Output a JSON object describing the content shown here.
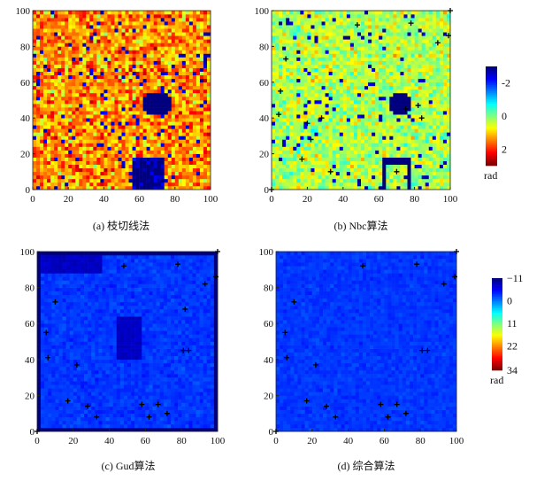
{
  "chart_data": [
    {
      "type": "heatmap",
      "caption": "(a) 枝切线法",
      "xlim": [
        0,
        100
      ],
      "ylim": [
        0,
        100
      ],
      "xticks": [
        "0",
        "20",
        "40",
        "60",
        "80",
        "100"
      ],
      "yticks": [
        "0",
        "20",
        "40",
        "60",
        "80",
        "100"
      ],
      "colorbar": "top",
      "base_value": 1.4,
      "noise": 0.9,
      "outlier_value": -2.6,
      "outlier_fraction": 0.06,
      "regions": [
        {
          "shape": "circle",
          "cx": 70,
          "cy": 48,
          "r": 8,
          "value": -3
        },
        {
          "shape": "rect",
          "x": [
            56,
            73
          ],
          "y": [
            0,
            17
          ],
          "value": -3
        }
      ],
      "markers": []
    },
    {
      "type": "heatmap",
      "caption": "(b) Nbc算法",
      "xlim": [
        0,
        100
      ],
      "ylim": [
        0,
        100
      ],
      "xticks": [
        "0",
        "20",
        "40",
        "60",
        "80",
        "100"
      ],
      "yticks": [
        "0",
        "20",
        "40",
        "60",
        "80",
        "100"
      ],
      "colorbar": "top",
      "base_value": 0.3,
      "noise": 0.7,
      "outlier_value": -2.6,
      "outlier_fraction": 0.04,
      "regions": [
        {
          "shape": "circle",
          "cx": 72,
          "cy": 48,
          "r": 7,
          "value": -3
        },
        {
          "shape": "outline",
          "x": [
            62,
            78
          ],
          "y": [
            0,
            17
          ],
          "value": -3
        }
      ],
      "markers": [
        [
          0,
          0
        ],
        [
          100,
          100
        ],
        [
          8,
          73
        ],
        [
          5,
          55
        ],
        [
          4,
          42
        ],
        [
          20,
          37
        ],
        [
          28,
          40
        ],
        [
          22,
          28
        ],
        [
          17,
          17
        ],
        [
          33,
          10
        ],
        [
          48,
          92
        ],
        [
          78,
          93
        ],
        [
          75,
          45
        ],
        [
          82,
          47
        ],
        [
          84,
          40
        ],
        [
          93,
          82
        ],
        [
          99,
          86
        ],
        [
          70,
          10
        ]
      ]
    },
    {
      "type": "heatmap",
      "caption": "(c) Gud算法",
      "xlim": [
        0,
        100
      ],
      "ylim": [
        0,
        100
      ],
      "xticks": [
        "0",
        "20",
        "40",
        "60",
        "80",
        "100"
      ],
      "yticks": [
        "0",
        "20",
        "40",
        "60",
        "80",
        "100"
      ],
      "colorbar": "bottom",
      "base_value": -3,
      "noise": 1.2,
      "outlier_value": -7,
      "outlier_fraction": 0.0,
      "regions": [
        {
          "shape": "rect",
          "x": [
            0,
            35
          ],
          "y": [
            88,
            100
          ],
          "value": -8
        },
        {
          "shape": "frame",
          "value": -11
        },
        {
          "shape": "rect",
          "x": [
            44,
            57
          ],
          "y": [
            40,
            63
          ],
          "value": -8
        }
      ],
      "markers": [
        [
          0,
          0
        ],
        [
          100,
          100
        ],
        [
          48,
          92
        ],
        [
          78,
          93
        ],
        [
          93,
          82
        ],
        [
          99,
          86
        ],
        [
          10,
          72
        ],
        [
          5,
          55
        ],
        [
          6,
          41
        ],
        [
          22,
          37
        ],
        [
          82,
          68
        ],
        [
          81,
          45
        ],
        [
          84,
          45
        ],
        [
          17,
          17
        ],
        [
          28,
          14
        ],
        [
          33,
          8
        ],
        [
          58,
          15
        ],
        [
          62,
          8
        ],
        [
          67,
          15
        ],
        [
          72,
          10
        ]
      ]
    },
    {
      "type": "heatmap",
      "caption": "(d) 综合算法",
      "xlim": [
        0,
        100
      ],
      "ylim": [
        0,
        100
      ],
      "xticks": [
        "0",
        "20",
        "40",
        "60",
        "80",
        "100"
      ],
      "yticks": [
        "0",
        "20",
        "40",
        "60",
        "80",
        "100"
      ],
      "colorbar": "bottom",
      "base_value": -3,
      "noise": 1.0,
      "outlier_value": -7,
      "outlier_fraction": 0.0,
      "regions": [],
      "markers": [
        [
          0,
          0
        ],
        [
          100,
          100
        ],
        [
          48,
          92
        ],
        [
          78,
          93
        ],
        [
          93,
          82
        ],
        [
          99,
          86
        ],
        [
          10,
          72
        ],
        [
          5,
          55
        ],
        [
          6,
          41
        ],
        [
          22,
          37
        ],
        [
          81,
          45
        ],
        [
          84,
          45
        ],
        [
          17,
          17
        ],
        [
          28,
          14
        ],
        [
          33,
          8
        ],
        [
          58,
          15
        ],
        [
          62,
          8
        ],
        [
          67,
          15
        ],
        [
          72,
          10
        ]
      ]
    }
  ],
  "colorbars": {
    "top": {
      "range": [
        -3,
        3
      ],
      "ticks": [
        "-2",
        "0",
        "2"
      ],
      "tick_values": [
        -2,
        0,
        2
      ],
      "unit": "rad"
    },
    "bottom": {
      "range": [
        -11,
        34
      ],
      "ticks": [
        "−11",
        "0",
        "11",
        "22",
        "34"
      ],
      "tick_values": [
        -11,
        0,
        11,
        22,
        34
      ],
      "unit": "rad"
    }
  }
}
